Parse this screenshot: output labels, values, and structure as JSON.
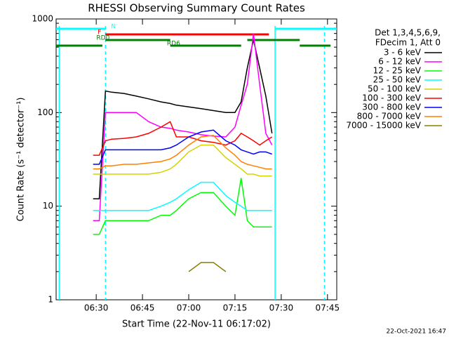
{
  "chart_data": {
    "type": "line",
    "title": "RHESSI Observing Summary Count Rates",
    "x_label": "Start Time (22-Nov-11 06:17:02)",
    "y_label": "Count Rate (s⁻¹ detector⁻¹)",
    "legend_header": [
      "Det 1,3,4,5,6,9,",
      "FDecim 1, Att 0"
    ],
    "footer": "22-Oct-2021 16:47",
    "log_y": true,
    "xlim": [
      "06:17",
      "07:48"
    ],
    "xticks": [
      "06:30",
      "06:45",
      "07:00",
      "07:15",
      "07:30",
      "07:45"
    ],
    "ylim": [
      1,
      1000
    ],
    "yticks": [
      1,
      10,
      100,
      1000
    ],
    "x": [
      "06:29",
      "06:31",
      "06:33",
      "06:35",
      "06:39",
      "06:43",
      "06:47",
      "06:51",
      "06:54",
      "06:56",
      "07:00",
      "07:04",
      "07:08",
      "07:12",
      "07:15",
      "07:17",
      "07:19",
      "07:21",
      "07:23",
      "07:25",
      "07:27"
    ],
    "series": [
      {
        "name": "3 - 6 keV",
        "color": "#000000",
        "values": [
          12,
          12,
          170,
          165,
          160,
          150,
          140,
          130,
          125,
          120,
          115,
          110,
          105,
          100,
          100,
          130,
          300,
          600,
          300,
          150,
          60
        ]
      },
      {
        "name": "6 - 12 keV",
        "color": "#ff00ff",
        "values": [
          7,
          7,
          100,
          100,
          100,
          100,
          80,
          70,
          68,
          65,
          62,
          58,
          56,
          55,
          70,
          120,
          200,
          700,
          200,
          60,
          45
        ]
      },
      {
        "name": "12 - 25 keV",
        "color": "#00ff00",
        "values": [
          5,
          5,
          7,
          7,
          7,
          7,
          7,
          8,
          8,
          9,
          12,
          14,
          14,
          10,
          8,
          20,
          7,
          6,
          6,
          6,
          6
        ]
      },
      {
        "name": "25 - 50 keV",
        "color": "#00ffff",
        "values": [
          9,
          9,
          9,
          9,
          9,
          9,
          9,
          10,
          11,
          12,
          15,
          18,
          18,
          13,
          11,
          10,
          9,
          9,
          9,
          9,
          9
        ]
      },
      {
        "name": "50 - 100 keV",
        "color": "#d4d400",
        "values": [
          22,
          22,
          22,
          22,
          22,
          22,
          22,
          23,
          25,
          28,
          38,
          45,
          45,
          33,
          28,
          25,
          22,
          22,
          21,
          21,
          21
        ]
      },
      {
        "name": "100 - 300 keV",
        "color": "#ff0000",
        "values": [
          35,
          35,
          50,
          52,
          53,
          55,
          60,
          70,
          80,
          55,
          55,
          50,
          48,
          45,
          50,
          60,
          55,
          50,
          45,
          50,
          55
        ]
      },
      {
        "name": "300 - 800 keV",
        "color": "#0000ff",
        "values": [
          28,
          28,
          40,
          40,
          40,
          40,
          40,
          40,
          42,
          45,
          55,
          62,
          65,
          50,
          45,
          40,
          38,
          36,
          38,
          38,
          36
        ]
      },
      {
        "name": "800 - 7000 keV",
        "color": "#ff8000",
        "values": [
          25,
          25,
          27,
          27,
          28,
          28,
          29,
          30,
          32,
          35,
          45,
          55,
          57,
          42,
          35,
          30,
          28,
          27,
          26,
          25,
          25
        ]
      },
      {
        "name": "7000 - 15000 keV",
        "color": "#8b7d00",
        "values": [
          null,
          null,
          null,
          null,
          null,
          null,
          null,
          null,
          null,
          null,
          2,
          2.5,
          2.5,
          2,
          null,
          null,
          null,
          null,
          null,
          null,
          null
        ]
      }
    ],
    "flags": [
      {
        "label": "N",
        "color": "#00ffff",
        "intervals": [
          [
            "06:17",
            "06:33"
          ],
          [
            "07:28",
            "07:48"
          ]
        ]
      },
      {
        "label": "F",
        "color": "#ff0000",
        "intervals": [
          [
            "06:33",
            "07:26"
          ]
        ]
      },
      {
        "label": "RD0",
        "color": "#008000",
        "intervals": [
          [
            "06:33",
            "06:54"
          ],
          [
            "07:19",
            "07:36"
          ]
        ]
      },
      {
        "label": "RD6",
        "color": "#008000",
        "intervals": [
          [
            "06:17",
            "06:32"
          ],
          [
            "06:54",
            "07:17"
          ],
          [
            "07:36",
            "07:46"
          ]
        ]
      }
    ],
    "markers": [
      {
        "x": "06:18",
        "color": "#00ffff",
        "style": "solid"
      },
      {
        "x": "06:33",
        "color": "#00ffff",
        "style": "dashed"
      },
      {
        "x": "07:28",
        "color": "#00ffff",
        "style": "solid"
      },
      {
        "x": "07:44",
        "color": "#00ffff",
        "style": "dashed"
      }
    ]
  }
}
